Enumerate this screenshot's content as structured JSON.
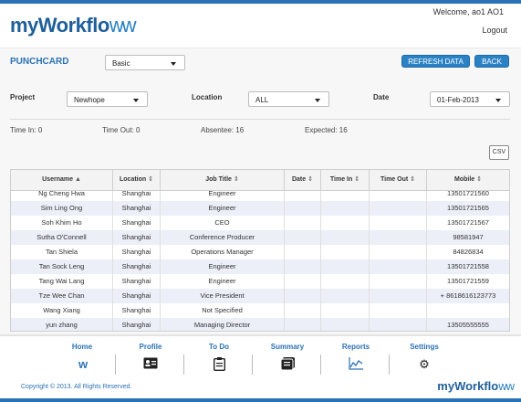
{
  "header": {
    "logo_main": "myWorkflo",
    "logo_tail": "ww",
    "welcome": "Welcome, ao1 AO1",
    "logout": "Logout"
  },
  "toolbar": {
    "title": "PUNCHCARD",
    "view_select": "Basic",
    "refresh_label": "REFRESH DATA",
    "back_label": "BACK"
  },
  "filters": {
    "project_label": "Project",
    "project_value": "Newhope",
    "location_label": "Location",
    "location_value": "ALL",
    "date_label": "Date",
    "date_value": "01-Feb-2013"
  },
  "stats": {
    "time_in": "Time In:  0",
    "time_out": "Time Out:  0",
    "absentee": "Absentee:  16",
    "expected": "Expected:  16"
  },
  "csv_label": "CSV",
  "table": {
    "columns": [
      "Username",
      "Location",
      "Job Title",
      "Date",
      "Time In",
      "Time Out",
      "Mobile"
    ],
    "rows": [
      {
        "username": "Ng Cheng Hwa",
        "location": "Shanghai",
        "job": "Engineer",
        "date": "",
        "time_in": "",
        "time_out": "",
        "mobile": "13501721560"
      },
      {
        "username": "Sim Ling Ong",
        "location": "Shanghai",
        "job": "Engineer",
        "date": "",
        "time_in": "",
        "time_out": "",
        "mobile": "13501721565"
      },
      {
        "username": "Soh Khim Ho",
        "location": "Shanghai",
        "job": "CEO",
        "date": "",
        "time_in": "",
        "time_out": "",
        "mobile": "13501721567"
      },
      {
        "username": "Sutha O'Connell",
        "location": "Shanghai",
        "job": "Conference Producer",
        "date": "",
        "time_in": "",
        "time_out": "",
        "mobile": "98581947"
      },
      {
        "username": "Tan Shiela",
        "location": "Shanghai",
        "job": "Operations Manager",
        "date": "",
        "time_in": "",
        "time_out": "",
        "mobile": "84826834"
      },
      {
        "username": "Tan Sock Leng",
        "location": "Shanghai",
        "job": "Engineer",
        "date": "",
        "time_in": "",
        "time_out": "",
        "mobile": "13501721558"
      },
      {
        "username": "Tang Wai Lang",
        "location": "Shanghai",
        "job": "Engineer",
        "date": "",
        "time_in": "",
        "time_out": "",
        "mobile": "13501721559"
      },
      {
        "username": "Tze Wee Chan",
        "location": "Shanghai",
        "job": "Vice President",
        "date": "",
        "time_in": "",
        "time_out": "",
        "mobile": "+ 8618616123773"
      },
      {
        "username": "Wang Xiang",
        "location": "Shanghai",
        "job": "Not Specified",
        "date": "",
        "time_in": "",
        "time_out": "",
        "mobile": ""
      },
      {
        "username": "yun zhang",
        "location": "Shanghai",
        "job": "Managing Director",
        "date": "",
        "time_in": "",
        "time_out": "",
        "mobile": "13505555555"
      }
    ]
  },
  "footer": {
    "nav": [
      {
        "label": "Home",
        "icon": "workflow-home-icon"
      },
      {
        "label": "Profile",
        "icon": "profile-card-icon"
      },
      {
        "label": "To Do",
        "icon": "clipboard-icon"
      },
      {
        "label": "Summary",
        "icon": "summary-icon"
      },
      {
        "label": "Reports",
        "icon": "chart-icon"
      },
      {
        "label": "Settings",
        "icon": "gear-icon"
      }
    ],
    "copyright": "Copyright © 2013. All Rights Reserved.",
    "logo_main": "myWorkflo",
    "logo_tail": "ww"
  },
  "colors": {
    "brand_blue": "#2a72b5",
    "button_blue": "#2a82c5",
    "alt_row": "#eceef8"
  }
}
